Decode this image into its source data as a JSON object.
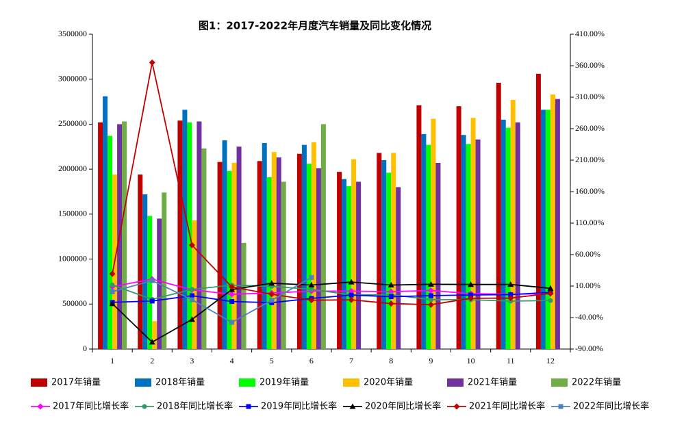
{
  "chart_data": {
    "type": "bar",
    "title": "图1：2017-2022年月度汽车销量及同比变化情况",
    "categories": [
      "1",
      "2",
      "3",
      "4",
      "5",
      "6",
      "7",
      "8",
      "9",
      "10",
      "11",
      "12"
    ],
    "ylim": [
      0,
      3500000
    ],
    "yticks": [
      0,
      500000,
      1000000,
      1500000,
      2000000,
      2500000,
      3000000,
      3500000
    ],
    "y2lim": [
      -90,
      410
    ],
    "y2ticks": [
      {
        "value": -90,
        "label": "-90.00%"
      },
      {
        "value": -40,
        "label": "-40.00%"
      },
      {
        "value": 10,
        "label": "10.00%"
      },
      {
        "value": 60,
        "label": "60.00%"
      },
      {
        "value": 110,
        "label": "110.00%"
      },
      {
        "value": 160,
        "label": "160.00%"
      },
      {
        "value": 210,
        "label": "210.00%"
      },
      {
        "value": 260,
        "label": "260.00%"
      },
      {
        "value": 310,
        "label": "310.00%"
      },
      {
        "value": 360,
        "label": "360.00%"
      },
      {
        "value": 410,
        "label": "410.00%"
      }
    ],
    "series": [
      {
        "name": "2017年销量",
        "color": "#c00000",
        "values": [
          2520000,
          1940000,
          2540000,
          2080000,
          2090000,
          2170000,
          1970000,
          2180000,
          2710000,
          2700000,
          2960000,
          3060000
        ]
      },
      {
        "name": "2018年销量",
        "color": "#0070c0",
        "values": [
          2810000,
          1720000,
          2660000,
          2320000,
          2290000,
          2270000,
          1890000,
          2100000,
          2390000,
          2380000,
          2550000,
          2660000
        ]
      },
      {
        "name": "2019年销量",
        "color": "#00ff00",
        "values": [
          2370000,
          1480000,
          2520000,
          1980000,
          1910000,
          2060000,
          1810000,
          1960000,
          2270000,
          2280000,
          2460000,
          2660000
        ]
      },
      {
        "name": "2020年销量",
        "color": "#ffc000",
        "values": [
          1940000,
          310000,
          1430000,
          2070000,
          2190000,
          2300000,
          2110000,
          2180000,
          2560000,
          2570000,
          2770000,
          2830000
        ]
      },
      {
        "name": "2021年销量",
        "color": "#7030a0",
        "values": [
          2500000,
          1450000,
          2530000,
          2250000,
          2130000,
          2010000,
          1860000,
          1800000,
          2070000,
          2330000,
          2520000,
          2780000
        ]
      },
      {
        "name": "2022年销量",
        "color": "#70ad47",
        "values": [
          2530000,
          1740000,
          2230000,
          1180000,
          1860000,
          2500000,
          null,
          null,
          null,
          null,
          null,
          null
        ]
      },
      {
        "name": "2017年同比增长率",
        "type": "line",
        "axis": "y2",
        "marker": "diamond",
        "color": "#ff00ff",
        "values": [
          9,
          21,
          4,
          -3,
          -1,
          2,
          2,
          1,
          3,
          -2,
          -3,
          -2
        ]
      },
      {
        "name": "2018年同比增长率",
        "type": "line",
        "axis": "y2",
        "marker": "circle",
        "color": "#339966",
        "values": [
          11.6,
          -11,
          4.7,
          11.5,
          9.6,
          4.8,
          -4,
          -3.7,
          -11.6,
          -11.7,
          -13.9,
          -13
        ]
      },
      {
        "name": "2019年同比增长率",
        "type": "line",
        "axis": "y2",
        "marker": "square",
        "color": "#0000ff",
        "values": [
          -15.8,
          -13.8,
          -5.2,
          -14.5,
          -16.4,
          -9.6,
          -4.3,
          -6.9,
          -5.2,
          -4.1,
          -3.6,
          0.1
        ]
      },
      {
        "name": "2020年同比增长率",
        "type": "line",
        "axis": "y2",
        "marker": "triangle",
        "color": "#000000",
        "values": [
          -18,
          -79,
          -43,
          4.4,
          14.5,
          11.6,
          16.4,
          11.6,
          12.8,
          12.5,
          12.6,
          6.4
        ]
      },
      {
        "name": "2021年同比增长率",
        "type": "line",
        "axis": "y2",
        "marker": "diamond",
        "color": "#c00000",
        "values": [
          29.4,
          365,
          75,
          8.6,
          -3,
          -12.4,
          -11.9,
          -17.8,
          -19.6,
          -9.4,
          -9.1,
          -1.6
        ]
      },
      {
        "name": "2022年同比增长率",
        "type": "line",
        "axis": "y2",
        "marker": "square",
        "color": "#4f81bd",
        "values": [
          1,
          18.7,
          -11.7,
          -47.6,
          -12.6,
          23.8,
          null,
          null,
          null,
          null,
          null,
          null
        ]
      }
    ]
  }
}
